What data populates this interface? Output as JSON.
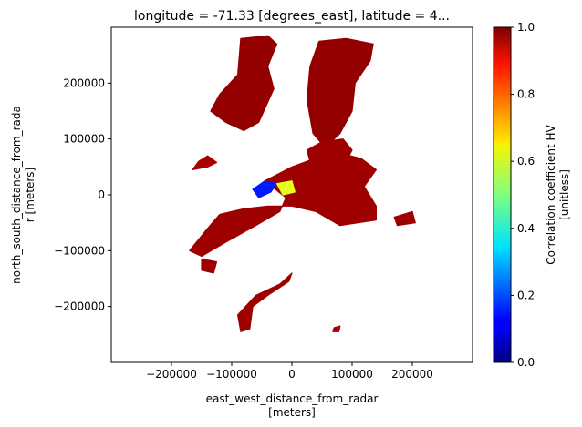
{
  "chart_data": {
    "type": "heatmap",
    "title": "longitude = -71.33 [degrees_east], latitude = 4...",
    "xlabel_line1": "east_west_distance_from_radar",
    "xlabel_line2": "[meters]",
    "ylabel_line1": "north_south_distance_from_rada",
    "ylabel_line2": "r [meters]",
    "xlim": [
      -300000,
      300000
    ],
    "ylim": [
      -300000,
      300000
    ],
    "x_ticks": [
      -200000,
      -100000,
      0,
      100000,
      200000
    ],
    "x_tick_labels": [
      "−200000",
      "−100000",
      "0",
      "100000",
      "200000"
    ],
    "y_ticks": [
      200000,
      100000,
      0,
      -100000,
      -200000
    ],
    "y_tick_labels": [
      "200000",
      "100000",
      "0",
      "−100000",
      "−200000"
    ],
    "colormap": "jet",
    "colorbar": {
      "label_line1": "Correlation coefficient HV",
      "label_line2": "[unitless]",
      "vmin": 0.0,
      "vmax": 1.0,
      "ticks": [
        0.0,
        0.2,
        0.4,
        0.6,
        0.8,
        1.0
      ],
      "tick_labels": [
        "0.0",
        "0.2",
        "0.4",
        "0.6",
        "0.8",
        "1.0"
      ]
    },
    "regions": [
      {
        "name": "north-west cell",
        "value": 0.98,
        "polygon": [
          [
            -85000,
            280000
          ],
          [
            -40000,
            285000
          ],
          [
            -25000,
            270000
          ],
          [
            -40000,
            230000
          ],
          [
            -30000,
            190000
          ],
          [
            -55000,
            130000
          ],
          [
            -80000,
            115000
          ],
          [
            -110000,
            130000
          ],
          [
            -135000,
            150000
          ],
          [
            -120000,
            180000
          ],
          [
            -90000,
            215000
          ]
        ]
      },
      {
        "name": "north-east cell",
        "value": 0.98,
        "polygon": [
          [
            45000,
            275000
          ],
          [
            90000,
            280000
          ],
          [
            135000,
            270000
          ],
          [
            130000,
            240000
          ],
          [
            105000,
            200000
          ],
          [
            100000,
            150000
          ],
          [
            80000,
            110000
          ],
          [
            55000,
            85000
          ],
          [
            35000,
            110000
          ],
          [
            25000,
            170000
          ],
          [
            30000,
            230000
          ]
        ]
      },
      {
        "name": "central band",
        "value": 0.97,
        "polygon": [
          [
            -45000,
            25000
          ],
          [
            0,
            50000
          ],
          [
            50000,
            70000
          ],
          [
            90000,
            72000
          ],
          [
            115000,
            65000
          ],
          [
            140000,
            45000
          ],
          [
            120000,
            15000
          ],
          [
            140000,
            -20000
          ],
          [
            140000,
            -45000
          ],
          [
            80000,
            -55000
          ],
          [
            40000,
            -30000
          ],
          [
            0,
            -20000
          ],
          [
            -40000,
            -20000
          ],
          [
            -80000,
            -25000
          ],
          [
            -120000,
            -35000
          ],
          [
            -140000,
            -60000
          ],
          [
            -170000,
            -100000
          ],
          [
            -150000,
            -110000
          ],
          [
            -110000,
            -85000
          ],
          [
            -60000,
            -55000
          ],
          [
            -20000,
            -30000
          ],
          [
            -10000,
            -5000
          ]
        ]
      },
      {
        "name": "north-central cell",
        "value": 0.97,
        "polygon": [
          [
            25000,
            80000
          ],
          [
            50000,
            95000
          ],
          [
            85000,
            100000
          ],
          [
            100000,
            80000
          ],
          [
            90000,
            60000
          ],
          [
            55000,
            55000
          ],
          [
            30000,
            60000
          ]
        ]
      },
      {
        "name": "south-west fragment",
        "value": 0.97,
        "polygon": [
          [
            -150000,
            -115000
          ],
          [
            -125000,
            -120000
          ],
          [
            -130000,
            -140000
          ],
          [
            -150000,
            -135000
          ]
        ]
      },
      {
        "name": "south cell",
        "value": 0.97,
        "polygon": [
          [
            -90000,
            -215000
          ],
          [
            -60000,
            -180000
          ],
          [
            -20000,
            -160000
          ],
          [
            0,
            -140000
          ],
          [
            -5000,
            -155000
          ],
          [
            -40000,
            -180000
          ],
          [
            -65000,
            -200000
          ],
          [
            -70000,
            -240000
          ],
          [
            -85000,
            -245000
          ]
        ]
      },
      {
        "name": "east fragment",
        "value": 0.97,
        "polygon": [
          [
            170000,
            -40000
          ],
          [
            200000,
            -30000
          ],
          [
            205000,
            -50000
          ],
          [
            175000,
            -55000
          ]
        ]
      },
      {
        "name": "western debris",
        "value": 0.96,
        "polygon": [
          [
            -155000,
            60000
          ],
          [
            -140000,
            70000
          ],
          [
            -125000,
            58000
          ],
          [
            -140000,
            50000
          ],
          [
            -165000,
            45000
          ]
        ]
      },
      {
        "name": "far-south fragment",
        "value": 0.96,
        "polygon": [
          [
            70000,
            -238000
          ],
          [
            80000,
            -235000
          ],
          [
            78000,
            -245000
          ],
          [
            68000,
            -245000
          ]
        ]
      },
      {
        "name": "center low-correlation patch",
        "value": 0.15,
        "polygon": [
          [
            -65000,
            10000
          ],
          [
            -45000,
            25000
          ],
          [
            -25000,
            20000
          ],
          [
            -35000,
            5000
          ],
          [
            -55000,
            -5000
          ]
        ]
      },
      {
        "name": "center mixed patch",
        "value": 0.6,
        "polygon": [
          [
            -25000,
            20000
          ],
          [
            0,
            25000
          ],
          [
            5000,
            5000
          ],
          [
            -15000,
            0
          ]
        ]
      }
    ]
  }
}
